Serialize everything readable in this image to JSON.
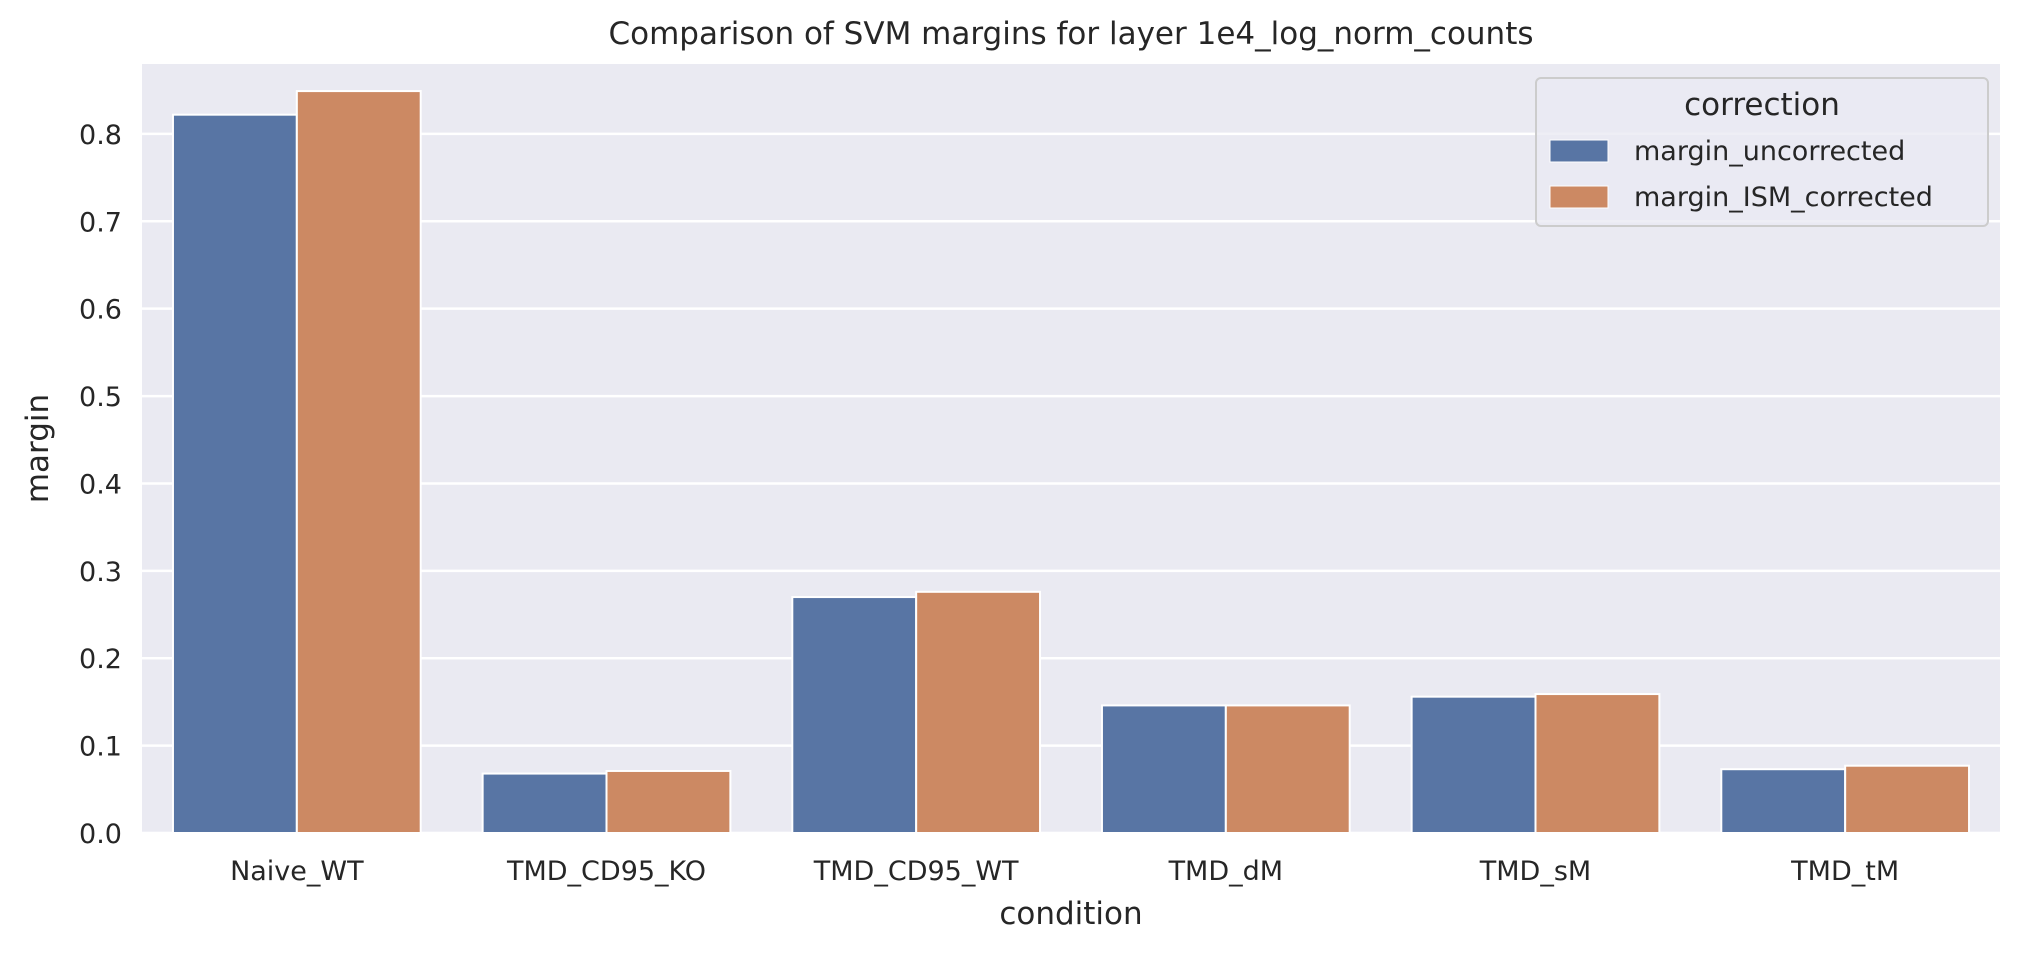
{
  "chart_data": {
    "type": "bar",
    "title": "Comparison of SVM margins for layer 1e4_log_norm_counts",
    "xlabel": "condition",
    "ylabel": "margin",
    "categories": [
      "Naive_WT",
      "TMD_CD95_KO",
      "TMD_CD95_WT",
      "TMD_dM",
      "TMD_sM",
      "TMD_tM"
    ],
    "series": [
      {
        "name": "margin_uncorrected",
        "color": "#5875a4",
        "values": [
          0.822,
          0.068,
          0.27,
          0.146,
          0.156,
          0.073
        ]
      },
      {
        "name": "margin_ISM_corrected",
        "color": "#cc8963",
        "values": [
          0.849,
          0.071,
          0.276,
          0.146,
          0.159,
          0.077
        ]
      }
    ],
    "ylim": [
      0,
      0.88
    ],
    "yticks": [
      "0.0",
      "0.1",
      "0.2",
      "0.3",
      "0.4",
      "0.5",
      "0.6",
      "0.7",
      "0.8"
    ],
    "grid": true,
    "legend": {
      "title": "correction",
      "position": "top-right"
    },
    "background_color": "#eaeaf2"
  }
}
